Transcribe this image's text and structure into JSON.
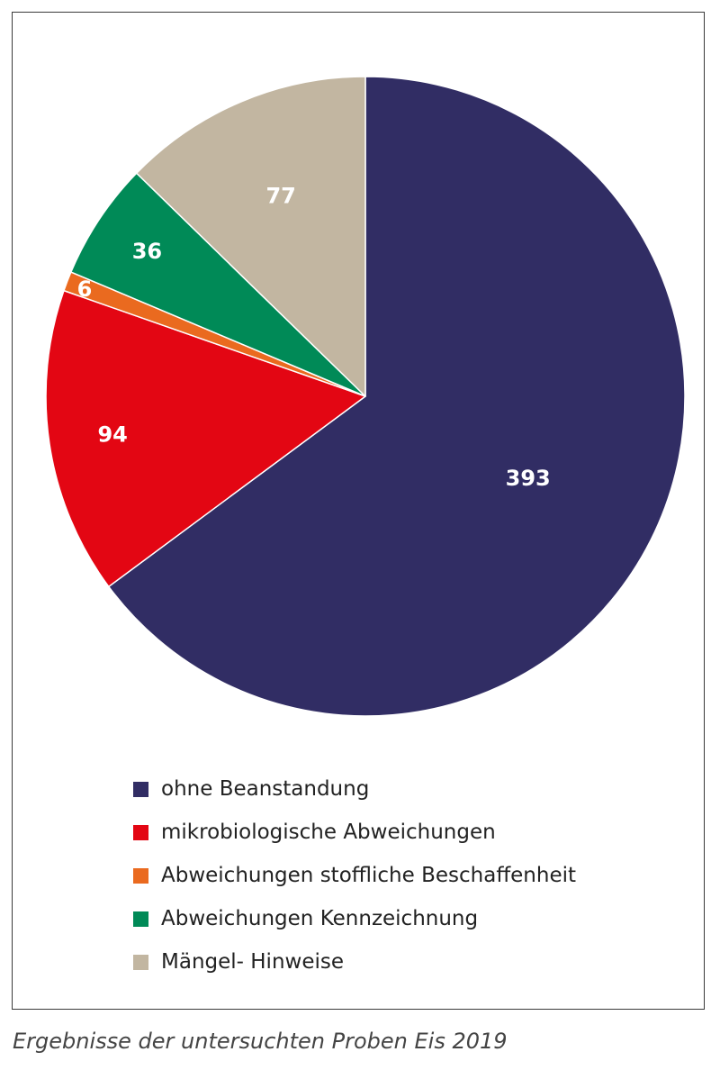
{
  "chart_data": {
    "type": "pie",
    "categories": [
      "ohne Beanstandung",
      "mikrobiologische Abweichungen",
      "Abweichungen stoffliche Beschaffenheit",
      "Abweichungen Kennzeichnung",
      "Mängel- Hinweise"
    ],
    "values": [
      393,
      94,
      6,
      36,
      77
    ],
    "data_labels": [
      "393",
      "94",
      "6",
      "36",
      "77"
    ],
    "colors": [
      "#312d64",
      "#e30613",
      "#ea6a1f",
      "#008a57",
      "#c2b6a1"
    ],
    "legend_position": "bottom-left",
    "start": "top",
    "direction": "clockwise",
    "legend": [
      {
        "label": "ohne Beanstandung",
        "color": "#312d64"
      },
      {
        "label": "mikrobiologische Abweichungen",
        "color": "#e30613"
      },
      {
        "label": "Abweichungen stoffliche Beschaffenheit",
        "color": "#ea6a1f"
      },
      {
        "label": "Abweichungen Kennzeichnung",
        "color": "#008a57"
      },
      {
        "label": "Mängel- Hinweise",
        "color": "#c2b6a1"
      }
    ]
  },
  "caption": "Ergebnisse der untersuchten Proben Eis 2019"
}
